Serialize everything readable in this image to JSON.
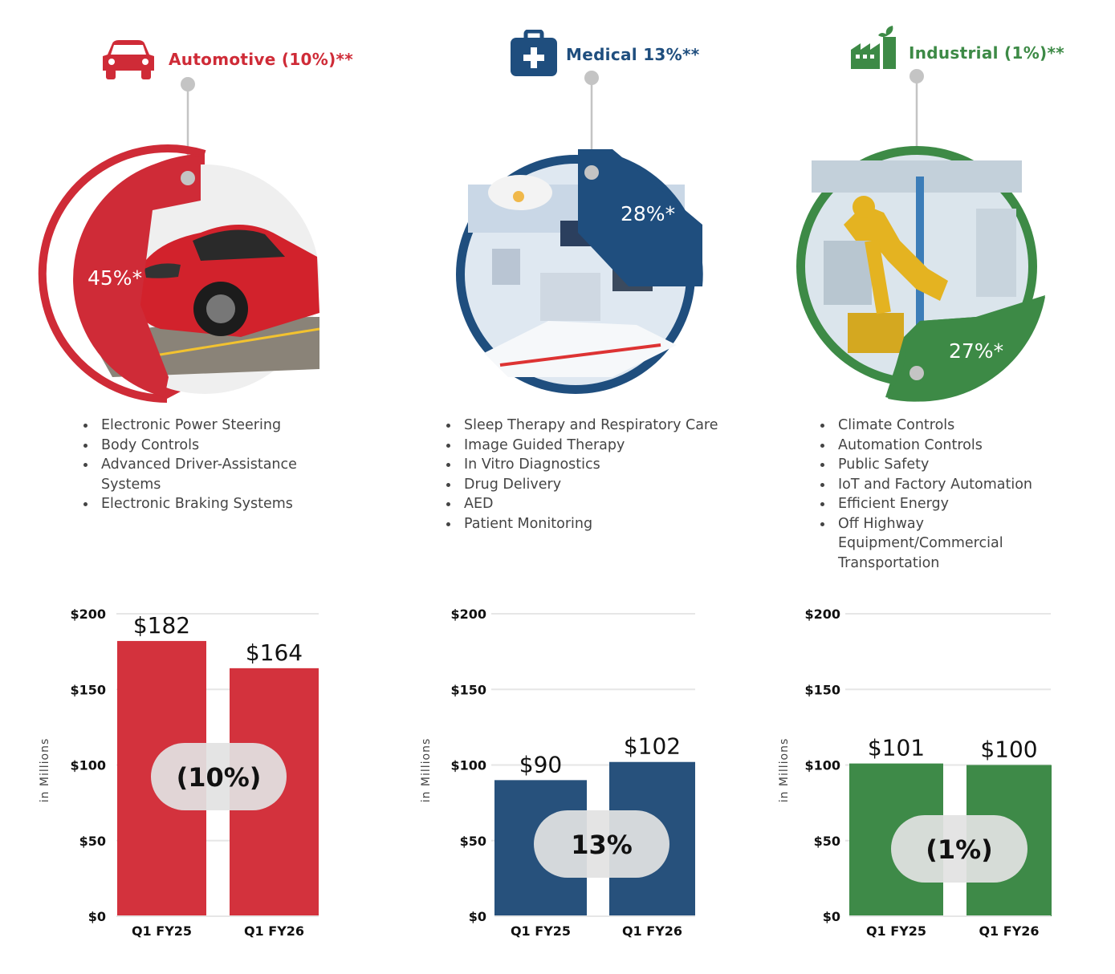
{
  "segments": [
    {
      "key": "automotive",
      "header": "Automotive (10%)**",
      "icon": "car-icon",
      "color": "#cf2b37",
      "share_label": "45%*",
      "share_fraction": 0.45,
      "applications": [
        "Electronic Power Steering",
        "Body Controls",
        "Advanced Driver-Assistance Systems",
        "Electronic Braking Systems"
      ]
    },
    {
      "key": "medical",
      "header": "Medical 13%**",
      "icon": "medical-kit-icon",
      "color": "#1f4e7e",
      "share_label": "28%*",
      "share_fraction": 0.28,
      "applications": [
        "Sleep Therapy and Respiratory Care",
        "Image Guided Therapy",
        "In Vitro Diagnostics",
        "Drug Delivery",
        "AED",
        "Patient Monitoring"
      ]
    },
    {
      "key": "industrial",
      "header": "Industrial (1%)**",
      "icon": "factory-icon",
      "color": "#3d8a46",
      "share_label": "27%*",
      "share_fraction": 0.27,
      "applications": [
        "Climate Controls",
        "Automation Controls",
        "Public Safety",
        "IoT and Factory Automation",
        "Efficient Energy",
        "Off Highway Equipment/Commercial Transportation"
      ]
    }
  ],
  "chart_data": [
    {
      "type": "bar",
      "categories": [
        "Q1 FY25",
        "Q1 FY26"
      ],
      "values": [
        182,
        164
      ],
      "value_labels": [
        "$182",
        "$164"
      ],
      "change_label": "(10%)",
      "ylabel": "in Millions",
      "ylim": [
        0,
        200
      ],
      "yticks": [
        0,
        50,
        100,
        150,
        200
      ],
      "ytick_labels": [
        "$0",
        "$50",
        "$100",
        "$150",
        "$200"
      ],
      "color": "#d3323d",
      "grid": true
    },
    {
      "type": "bar",
      "categories": [
        "Q1 FY25",
        "Q1 FY26"
      ],
      "values": [
        90,
        102
      ],
      "value_labels": [
        "$90",
        "$102"
      ],
      "change_label": "13%",
      "ylabel": "in Millions",
      "ylim": [
        0,
        200
      ],
      "yticks": [
        0,
        50,
        100,
        150,
        200
      ],
      "ytick_labels": [
        "$0",
        "$50",
        "$100",
        "$150",
        "$200"
      ],
      "color": "#27517c",
      "grid": true
    },
    {
      "type": "bar",
      "categories": [
        "Q1 FY25",
        "Q1 FY26"
      ],
      "values": [
        101,
        100
      ],
      "value_labels": [
        "$101",
        "$100"
      ],
      "change_label": "(1%)",
      "ylabel": "in Millions",
      "ylim": [
        0,
        200
      ],
      "yticks": [
        0,
        50,
        100,
        150,
        200
      ],
      "ytick_labels": [
        "$0",
        "$50",
        "$100",
        "$150",
        "$200"
      ],
      "color": "#3e8a48",
      "grid": true
    }
  ]
}
